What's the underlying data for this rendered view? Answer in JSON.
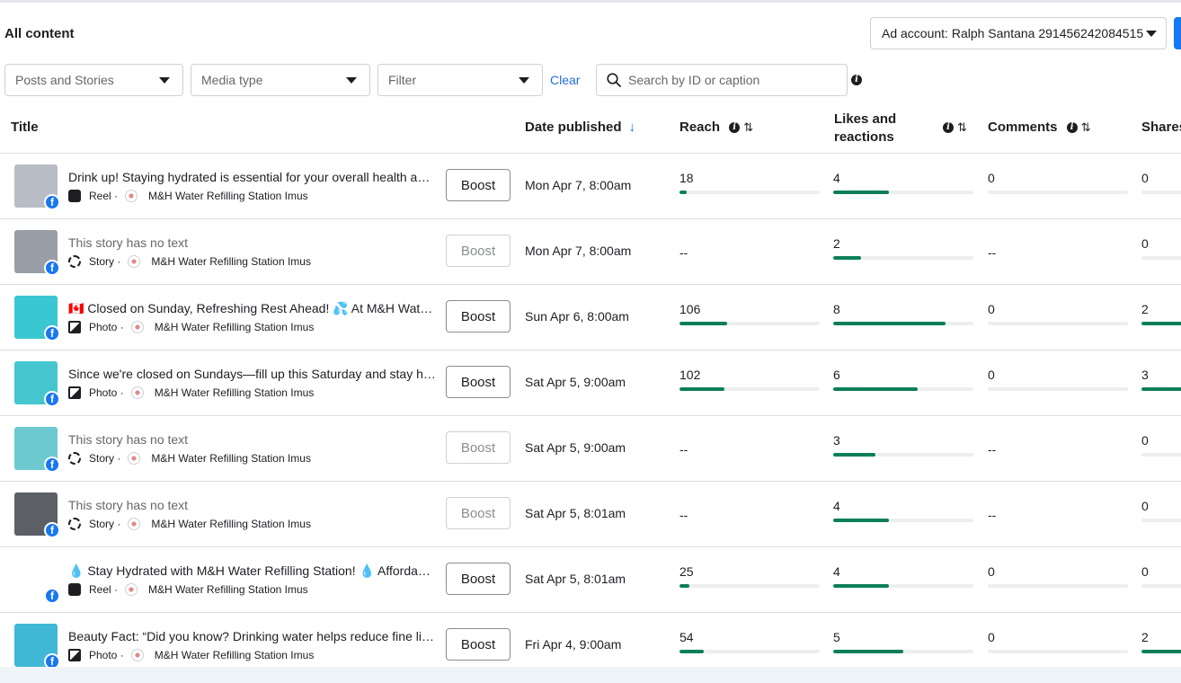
{
  "header": {
    "title": "All content",
    "ad_account_label": "Ad account: Ralph Santana 291456242084515"
  },
  "filters": {
    "content_type": "Posts and Stories",
    "media_type": "Media type",
    "filter": "Filter",
    "clear_label": "Clear",
    "search_placeholder": "Search by ID or caption"
  },
  "columns": {
    "title": "Title",
    "date_published": "Date published",
    "reach": "Reach",
    "likes_line1": "Likes and",
    "likes_line2": "reactions",
    "comments": "Comments",
    "shares": "Shares"
  },
  "page_name": "M&H Water Refilling Station Imus",
  "rows": [
    {
      "caption": "Drink up! Staying hydrated is essential for your overall health and wellness!",
      "type": "Reel ·",
      "date": "Mon Apr 7, 8:00am",
      "reach": "18",
      "likes": "4",
      "comments": "0",
      "shares": "0",
      "boost": "Boost",
      "has_text": true,
      "boost_enabled": true,
      "reach_bar": 0.05,
      "likes_bar": 0.4,
      "comments_bar": 0,
      "shares_bar": 0,
      "thumb": "#b8bcc4"
    },
    {
      "caption": "This story has no text",
      "type": "Story ·",
      "date": "Mon Apr 7, 8:00am",
      "reach": "--",
      "likes": "2",
      "comments": "--",
      "shares": "0",
      "boost": "Boost",
      "has_text": false,
      "boost_enabled": false,
      "reach_bar": null,
      "likes_bar": 0.2,
      "comments_bar": null,
      "shares_bar": 0,
      "thumb": "#9a9ea6"
    },
    {
      "caption": "🇨🇦 Closed on Sunday, Refreshing Rest Ahead! 💦 At M&H Water Refilling Station",
      "type": "Photo ·",
      "date": "Sun Apr 6, 8:00am",
      "reach": "106",
      "likes": "8",
      "comments": "0",
      "shares": "2",
      "boost": "Boost",
      "has_text": true,
      "boost_enabled": true,
      "reach_bar": 0.34,
      "likes_bar": 0.8,
      "comments_bar": 0,
      "shares_bar": 0.7,
      "thumb": "#39c7d2"
    },
    {
      "caption": "Since we're closed on Sundays—fill up this Saturday and stay hydrated!",
      "type": "Photo ·",
      "date": "Sat Apr 5, 9:00am",
      "reach": "102",
      "likes": "6",
      "comments": "0",
      "shares": "3",
      "boost": "Boost",
      "has_text": true,
      "boost_enabled": true,
      "reach_bar": 0.32,
      "likes_bar": 0.6,
      "comments_bar": 0,
      "shares_bar": 1.0,
      "thumb": "#45c6cf"
    },
    {
      "caption": "This story has no text",
      "type": "Story ·",
      "date": "Sat Apr 5, 9:00am",
      "reach": "--",
      "likes": "3",
      "comments": "--",
      "shares": "0",
      "boost": "Boost",
      "has_text": false,
      "boost_enabled": false,
      "reach_bar": null,
      "likes_bar": 0.3,
      "comments_bar": null,
      "shares_bar": 0,
      "thumb": "#6cc9cf"
    },
    {
      "caption": "This story has no text",
      "type": "Story ·",
      "date": "Sat Apr 5, 8:01am",
      "reach": "--",
      "likes": "4",
      "comments": "--",
      "shares": "0",
      "boost": "Boost",
      "has_text": false,
      "boost_enabled": false,
      "reach_bar": null,
      "likes_bar": 0.4,
      "comments_bar": null,
      "shares_bar": 0,
      "thumb": "#5c5f66"
    },
    {
      "caption": "💧 Stay Hydrated with M&H Water Refilling Station! 💧 Affordable, clean water",
      "type": "Reel ·",
      "date": "Sat Apr 5, 8:01am",
      "reach": "25",
      "likes": "4",
      "comments": "0",
      "shares": "0",
      "boost": "Boost",
      "has_text": true,
      "boost_enabled": true,
      "reach_bar": 0.07,
      "likes_bar": 0.4,
      "comments_bar": 0,
      "shares_bar": 0,
      "thumb": "#ffffff"
    },
    {
      "caption": "Beauty Fact: “Did you know? Drinking water helps reduce fine lines",
      "type": "Photo ·",
      "date": "Fri Apr 4, 9:00am",
      "reach": "54",
      "likes": "5",
      "comments": "0",
      "shares": "2",
      "boost": "Boost",
      "has_text": true,
      "boost_enabled": true,
      "reach_bar": 0.17,
      "likes_bar": 0.5,
      "comments_bar": 0,
      "shares_bar": 0.7,
      "thumb": "#3fb8d6"
    }
  ],
  "colors": {
    "accent": "#1877f2",
    "link": "#216fdb",
    "bar_fill": "#0c7f57",
    "bar_track": "#eceef0"
  },
  "icons": {
    "facebook": "facebook-icon",
    "search": "search-icon",
    "info": "info-icon",
    "reel": "reel-icon",
    "story": "story-icon",
    "photo": "photo-icon"
  }
}
